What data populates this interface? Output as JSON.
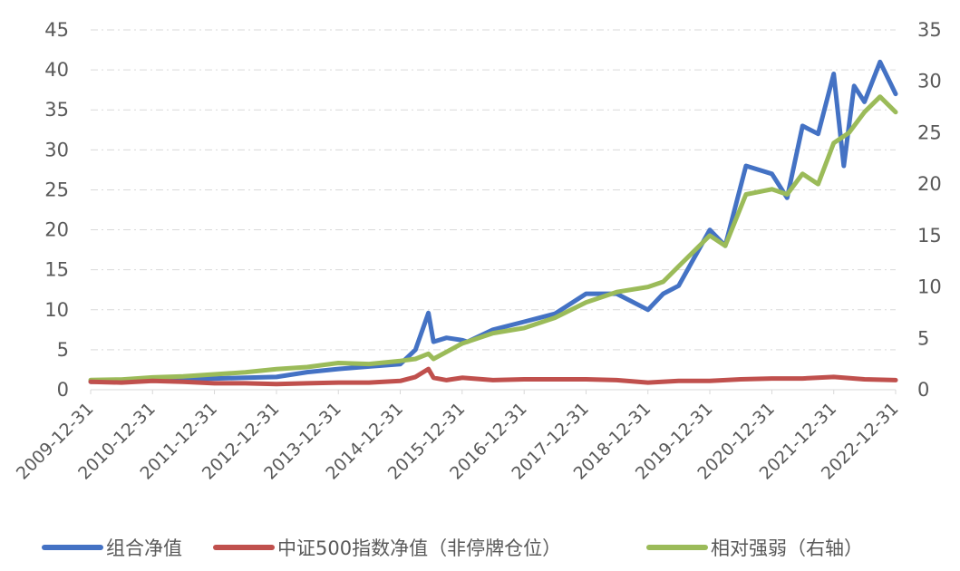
{
  "chart_data": {
    "type": "line",
    "title": "",
    "xlabel": "",
    "ylabel": "",
    "x_tick_labels": [
      "2009-12-31",
      "2010-12-31",
      "2011-12-31",
      "2012-12-31",
      "2013-12-31",
      "2014-12-31",
      "2015-12-31",
      "2016-12-31",
      "2017-12-31",
      "2018-12-31",
      "2019-12-31",
      "2020-12-31",
      "2021-12-31",
      "2022-12-31"
    ],
    "x_range": [
      "2009-12-31",
      "2022-12-31"
    ],
    "y_left": {
      "ylim": [
        0,
        45
      ],
      "ticks": [
        0,
        5,
        10,
        15,
        20,
        25,
        30,
        35,
        40,
        45
      ]
    },
    "y_right": {
      "ylim": [
        0,
        35
      ],
      "ticks": [
        0,
        5,
        10,
        15,
        20,
        25,
        30,
        35
      ]
    },
    "grid": true,
    "legend_position": "bottom",
    "series": [
      {
        "name": "组合净值",
        "axis": "left",
        "color": "#4472C4",
        "x": [
          "2009-12-31",
          "2010-06-30",
          "2010-12-31",
          "2011-06-30",
          "2011-12-31",
          "2012-06-30",
          "2012-12-31",
          "2013-06-30",
          "2013-12-31",
          "2014-06-30",
          "2014-12-31",
          "2015-03-31",
          "2015-06-15",
          "2015-07-15",
          "2015-09-30",
          "2015-12-31",
          "2016-01-31",
          "2016-06-30",
          "2016-12-31",
          "2017-06-30",
          "2017-12-31",
          "2018-06-30",
          "2018-12-31",
          "2019-03-31",
          "2019-06-30",
          "2019-12-31",
          "2020-03-31",
          "2020-07-31",
          "2020-12-31",
          "2021-03-31",
          "2021-06-30",
          "2021-09-30",
          "2021-12-31",
          "2022-02-28",
          "2022-04-30",
          "2022-06-30",
          "2022-09-30",
          "2022-12-31"
        ],
        "values": [
          1.0,
          1.1,
          1.2,
          1.3,
          1.4,
          1.5,
          1.6,
          2.2,
          2.6,
          2.9,
          3.2,
          5.0,
          9.6,
          6.0,
          6.5,
          6.2,
          6.0,
          7.5,
          8.5,
          9.5,
          12.0,
          12.0,
          10.0,
          12.0,
          13.0,
          20.0,
          18.0,
          28.0,
          27.0,
          24.0,
          33.0,
          32.0,
          39.5,
          28.0,
          38.0,
          36.0,
          41.0,
          37.0
        ]
      },
      {
        "name": "中证500指数净值（非停牌仓位）",
        "axis": "left",
        "color": "#C0504D",
        "x": [
          "2009-12-31",
          "2010-06-30",
          "2010-12-31",
          "2011-06-30",
          "2011-12-31",
          "2012-06-30",
          "2012-12-31",
          "2013-06-30",
          "2013-12-31",
          "2014-06-30",
          "2014-12-31",
          "2015-03-31",
          "2015-06-15",
          "2015-07-15",
          "2015-09-30",
          "2015-12-31",
          "2016-06-30",
          "2016-12-31",
          "2017-06-30",
          "2017-12-31",
          "2018-06-30",
          "2018-12-31",
          "2019-06-30",
          "2019-12-31",
          "2020-06-30",
          "2020-12-31",
          "2021-06-30",
          "2021-12-31",
          "2022-06-30",
          "2022-12-31"
        ],
        "values": [
          1.0,
          0.9,
          1.1,
          1.0,
          0.8,
          0.8,
          0.7,
          0.8,
          0.9,
          0.9,
          1.1,
          1.6,
          2.6,
          1.5,
          1.2,
          1.5,
          1.2,
          1.3,
          1.3,
          1.3,
          1.2,
          0.9,
          1.1,
          1.1,
          1.3,
          1.4,
          1.4,
          1.6,
          1.3,
          1.2
        ]
      },
      {
        "name": "相对强弱（右轴）",
        "axis": "right",
        "color": "#9BBB59",
        "x": [
          "2009-12-31",
          "2010-06-30",
          "2010-12-31",
          "2011-06-30",
          "2011-12-31",
          "2012-06-30",
          "2012-12-31",
          "2013-06-30",
          "2013-12-31",
          "2014-06-30",
          "2014-12-31",
          "2015-03-31",
          "2015-06-15",
          "2015-07-15",
          "2015-12-31",
          "2016-06-30",
          "2016-12-31",
          "2017-06-30",
          "2017-12-31",
          "2018-06-30",
          "2018-12-31",
          "2019-03-31",
          "2019-06-30",
          "2019-12-31",
          "2020-03-31",
          "2020-07-31",
          "2020-12-31",
          "2021-03-31",
          "2021-06-30",
          "2021-09-30",
          "2021-12-31",
          "2022-03-31",
          "2022-06-30",
          "2022-09-30",
          "2022-12-31"
        ],
        "values": [
          0.95,
          1.0,
          1.2,
          1.3,
          1.5,
          1.7,
          2.0,
          2.2,
          2.6,
          2.5,
          2.8,
          3.0,
          3.5,
          3.0,
          4.5,
          5.5,
          6.0,
          7.0,
          8.5,
          9.5,
          10.0,
          10.5,
          12.0,
          15.0,
          14.0,
          19.0,
          19.5,
          19.0,
          21.0,
          20.0,
          24.0,
          25.0,
          27.0,
          28.5,
          27.0
        ]
      }
    ]
  },
  "legend": {
    "items": [
      {
        "label": "组合净值",
        "color": "#4472C4"
      },
      {
        "label": "中证500指数净值（非停牌仓位）",
        "color": "#C0504D"
      },
      {
        "label": "相对强弱（右轴）",
        "color": "#9BBB59"
      }
    ]
  }
}
